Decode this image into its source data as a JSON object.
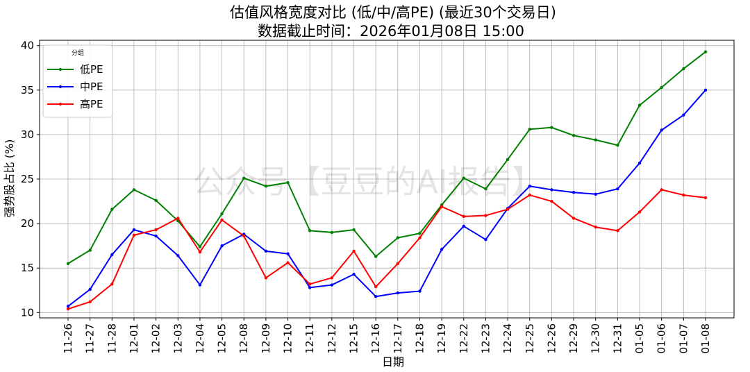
{
  "chart_data": {
    "type": "line",
    "title": "估值风格宽度对比 (低/中/高PE) (最近30个交易日)",
    "subtitle": "数据截止时间：2026年01月08日 15:00",
    "xlabel": "日期",
    "ylabel": "强势股占比 (%)",
    "ylim": [
      9.4,
      40.6
    ],
    "yticks": [
      10,
      15,
      20,
      25,
      30,
      35,
      40
    ],
    "grid": true,
    "legend": {
      "title": "分组",
      "placement": "top-left"
    },
    "watermark": "公众号【豆豆的AI报告】",
    "categories": [
      "11-26",
      "11-27",
      "11-28",
      "12-01",
      "12-02",
      "12-03",
      "12-04",
      "12-05",
      "12-08",
      "12-09",
      "12-10",
      "12-11",
      "12-12",
      "12-15",
      "12-16",
      "12-17",
      "12-18",
      "12-19",
      "12-22",
      "12-23",
      "12-24",
      "12-25",
      "12-26",
      "12-29",
      "12-30",
      "12-31",
      "01-05",
      "01-06",
      "01-07",
      "01-08"
    ],
    "series": [
      {
        "name": "低PE",
        "color": "#008000",
        "values": [
          15.5,
          17.0,
          21.6,
          23.8,
          22.6,
          20.3,
          17.4,
          21.1,
          25.1,
          24.2,
          24.6,
          19.2,
          19.0,
          19.3,
          16.3,
          18.4,
          18.9,
          22.1,
          25.1,
          23.9,
          27.2,
          30.6,
          30.8,
          29.9,
          29.4,
          28.8,
          33.3,
          35.3,
          37.4,
          39.3
        ]
      },
      {
        "name": "中PE",
        "color": "#0000ff",
        "values": [
          10.7,
          12.6,
          16.5,
          19.3,
          18.6,
          16.4,
          13.1,
          17.5,
          18.8,
          16.9,
          16.6,
          12.8,
          13.1,
          14.3,
          11.8,
          12.2,
          12.4,
          17.1,
          19.7,
          18.2,
          21.7,
          24.2,
          23.8,
          23.5,
          23.3,
          23.9,
          26.8,
          30.5,
          32.2,
          35.0
        ]
      },
      {
        "name": "高PE",
        "color": "#ff0000",
        "values": [
          10.4,
          11.2,
          13.2,
          18.7,
          19.3,
          20.6,
          16.8,
          20.4,
          18.6,
          13.9,
          15.6,
          13.2,
          13.9,
          16.9,
          12.9,
          15.5,
          18.4,
          21.9,
          20.8,
          20.9,
          21.6,
          23.2,
          22.5,
          20.6,
          19.6,
          19.2,
          21.3,
          23.8,
          23.2,
          22.9
        ]
      }
    ]
  }
}
